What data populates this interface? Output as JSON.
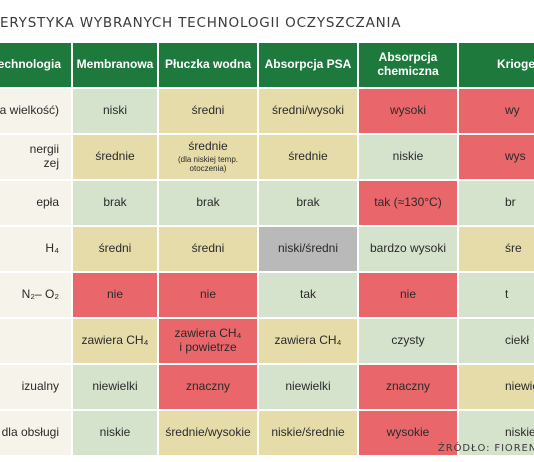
{
  "title": "ERYSTYKA WYBRANYCH TECHNOLOGII OCZYSZCZANIA",
  "source": "ŹRÓDŁO: FIORENT",
  "headers": [
    "technologia",
    "Membranowa",
    "Płuczka wodna",
    "Absorpcja PSA",
    "Absorpcja chemiczna",
    "Kriogen"
  ],
  "rows": [
    {
      "label": "a wielkość)",
      "cells": [
        "niski",
        "średni",
        "średni/wysoki",
        "wysoki",
        "wy"
      ]
    },
    {
      "label_line1": "nergii",
      "label_line2": "zej",
      "cells": [
        "średnie",
        "średnie",
        "średnie",
        "niskie",
        "wys"
      ],
      "note": "(dla niskiej temp. otoczenia)"
    },
    {
      "label": "epła",
      "cells": [
        "brak",
        "brak",
        "brak",
        "tak (≈130°C)",
        "br"
      ]
    },
    {
      "label": "H₄",
      "cells": [
        "średni",
        "średni",
        "niski/średni",
        "bardzo wysoki",
        "śre"
      ]
    },
    {
      "label": "N₂– O₂",
      "cells": [
        "nie",
        "nie",
        "tak",
        "nie",
        "t"
      ]
    },
    {
      "label": "",
      "cells": [
        "zawiera CH₄",
        "zawiera CH₄",
        "zawiera CH₄",
        "czysty",
        "ciekł"
      ],
      "cell2_line2": "i powietrze"
    },
    {
      "label": "izualny",
      "cells": [
        "niewielki",
        "znaczny",
        "niewielki",
        "znaczny",
        "niewiel"
      ]
    },
    {
      "label": "ia dla obsługi",
      "cells": [
        "niskie",
        "średnie/wysokie",
        "niskie/średnie",
        "wysokie",
        "niskie"
      ]
    }
  ],
  "colors": {
    "header_green": "#1e7a3c",
    "cell_green": "#d5e3cd",
    "cell_tan": "#e6dcaa",
    "cell_red": "#e9676a",
    "cell_gray": "#b9b9b9",
    "label_bg": "#f5f3ea"
  }
}
